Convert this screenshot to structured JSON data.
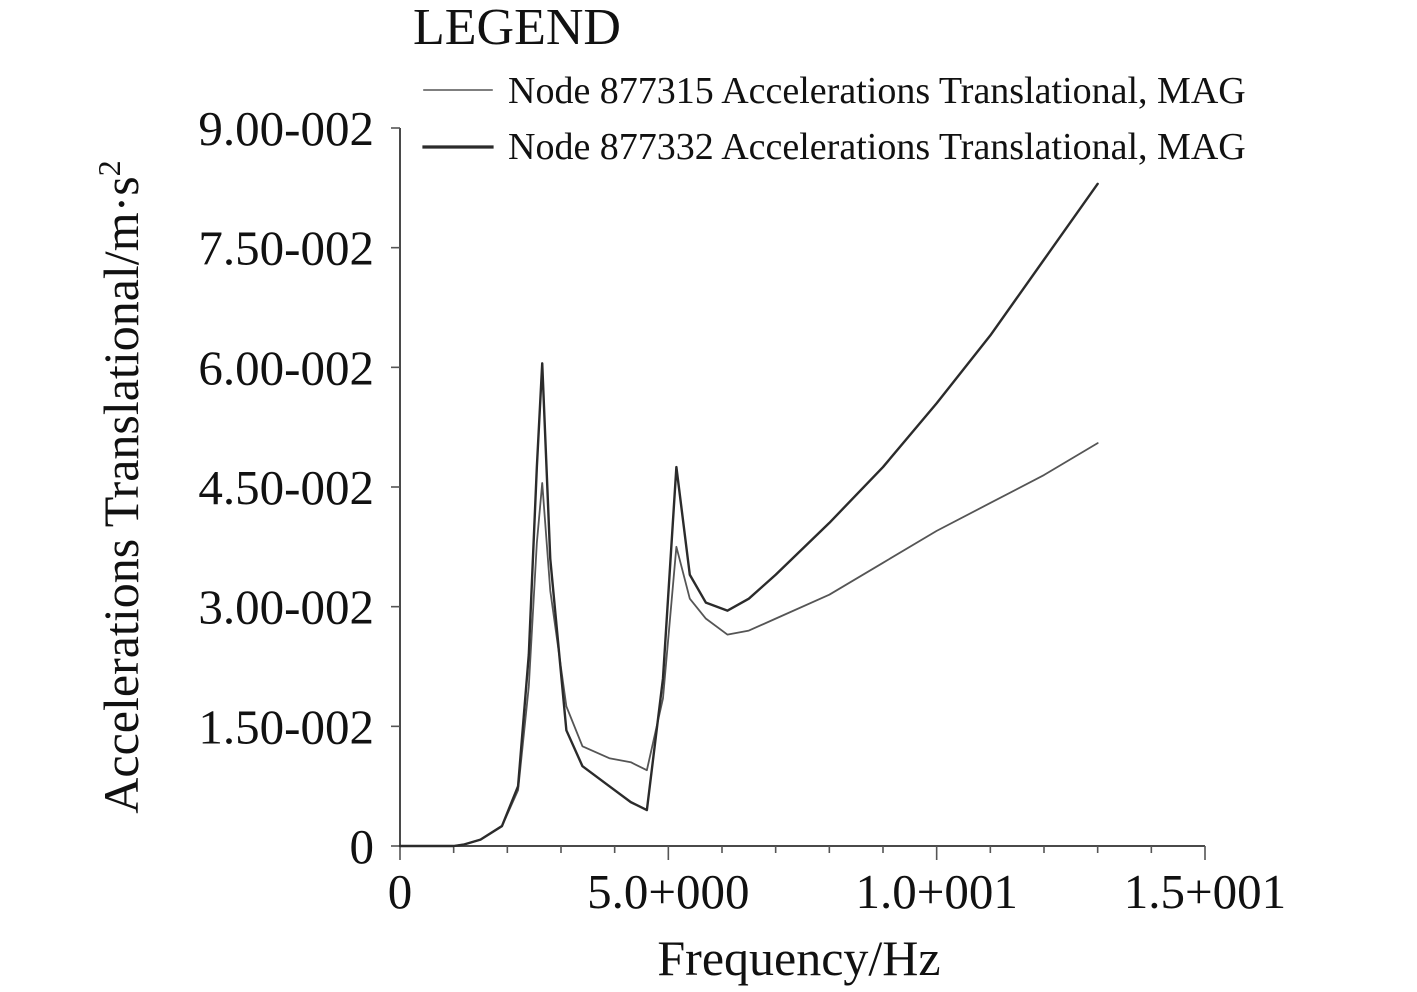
{
  "chart_data": {
    "type": "line",
    "legend": {
      "title": "LEGEND",
      "placement": "top-right"
    },
    "xlabel": "Frequency/Hz",
    "ylabel_main": "Accelerations Translational/m·s",
    "ylabel_superscript": "2",
    "xlim": [
      0,
      15
    ],
    "ylim": [
      0,
      0.09
    ],
    "grid": false,
    "x_ticks": [
      {
        "value": 0,
        "label": "0"
      },
      {
        "value": 5,
        "label": "5.0+000"
      },
      {
        "value": 10,
        "label": "1.0+001"
      },
      {
        "value": 15,
        "label": "1.5+001"
      }
    ],
    "x_minor_ticks": [
      1,
      2,
      3,
      4,
      6,
      7,
      8,
      9,
      11,
      12,
      13,
      14
    ],
    "y_ticks": [
      {
        "value": 0,
        "label": "0"
      },
      {
        "value": 0.015,
        "label": "1.50-002"
      },
      {
        "value": 0.03,
        "label": "3.00-002"
      },
      {
        "value": 0.045,
        "label": "4.50-002"
      },
      {
        "value": 0.06,
        "label": "6.00-002"
      },
      {
        "value": 0.075,
        "label": "7.50-002"
      },
      {
        "value": 0.09,
        "label": "9.00-002"
      }
    ],
    "series": [
      {
        "name": "Node 877315 Accelerations Translational, MAG",
        "color": "#555555",
        "legend_stroke": 1.6,
        "stroke": 1.8,
        "x": [
          0.0,
          0.5,
          1.0,
          1.2,
          1.5,
          1.9,
          2.2,
          2.4,
          2.55,
          2.65,
          2.8,
          3.1,
          3.4,
          3.9,
          4.3,
          4.6,
          4.9,
          5.15,
          5.4,
          5.7,
          6.1,
          6.5,
          7.0,
          8.0,
          9.0,
          10.0,
          11.0,
          12.0,
          13.0
        ],
        "y": [
          0.0,
          0.0,
          0.0,
          0.0002,
          0.0008,
          0.0025,
          0.007,
          0.02,
          0.038,
          0.0455,
          0.032,
          0.0175,
          0.0125,
          0.011,
          0.0105,
          0.0095,
          0.0185,
          0.0375,
          0.031,
          0.0285,
          0.0265,
          0.027,
          0.0285,
          0.0315,
          0.0355,
          0.0395,
          0.043,
          0.0465,
          0.0505
        ]
      },
      {
        "name": "Node 877332 Accelerations Translational, MAG",
        "color": "#2b2b2b",
        "legend_stroke": 3.2,
        "stroke": 2.4,
        "x": [
          0.0,
          0.5,
          1.0,
          1.2,
          1.5,
          1.9,
          2.2,
          2.4,
          2.55,
          2.65,
          2.8,
          3.1,
          3.4,
          3.9,
          4.3,
          4.6,
          4.9,
          5.15,
          5.4,
          5.7,
          6.1,
          6.5,
          7.0,
          8.0,
          9.0,
          10.0,
          11.0,
          12.0,
          13.0
        ],
        "y": [
          0.0,
          0.0,
          0.0,
          0.0002,
          0.0008,
          0.0025,
          0.0075,
          0.024,
          0.0475,
          0.0605,
          0.036,
          0.0145,
          0.01,
          0.0075,
          0.0055,
          0.0045,
          0.021,
          0.0475,
          0.034,
          0.0305,
          0.0295,
          0.031,
          0.034,
          0.0405,
          0.0475,
          0.0555,
          0.064,
          0.0735,
          0.083
        ]
      }
    ]
  }
}
